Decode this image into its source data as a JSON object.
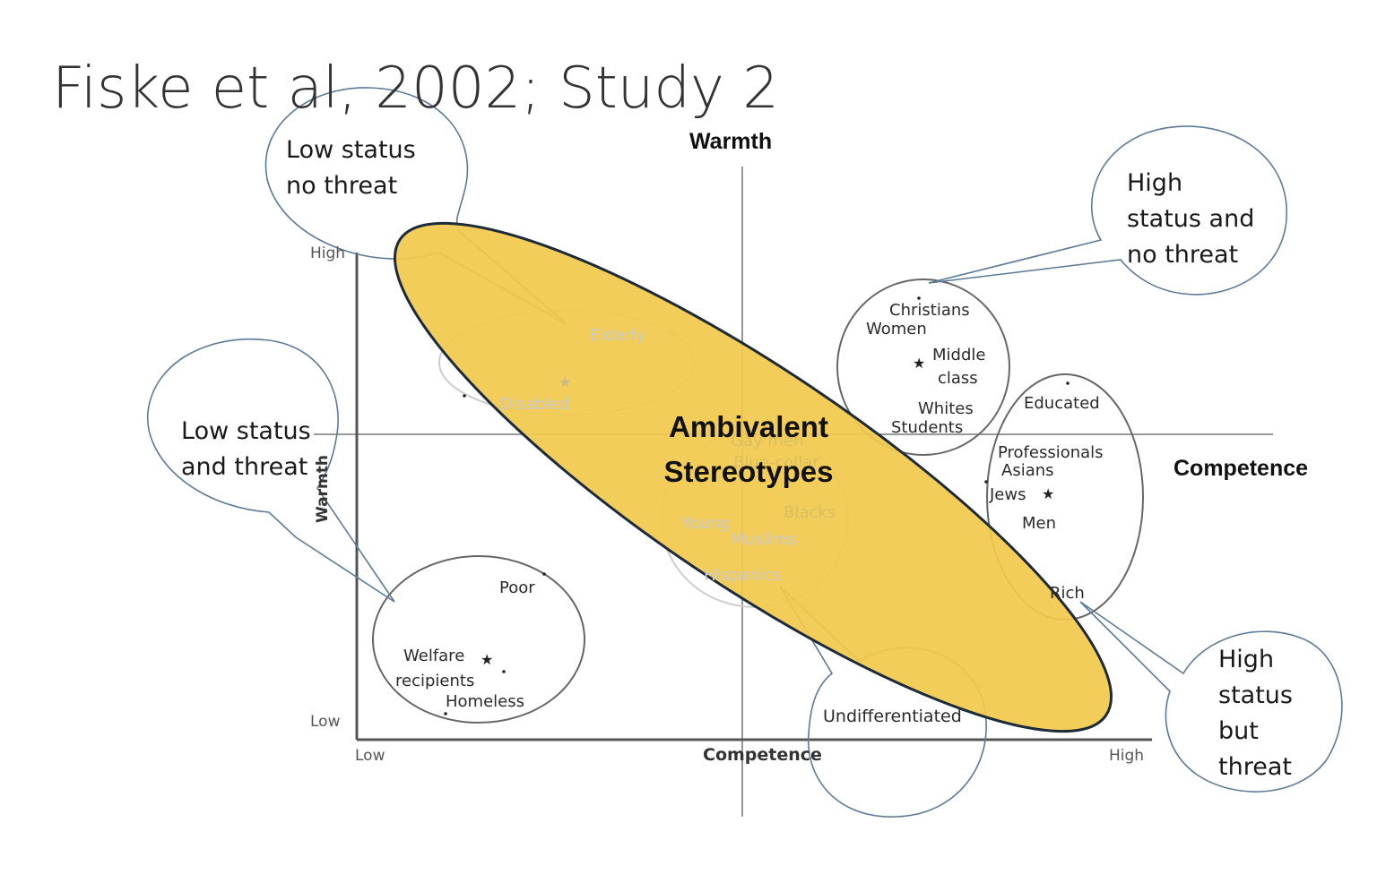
{
  "title": "Fiske et al, 2002; Study 2",
  "axes": {
    "top_warmth": "Warmth",
    "right_competence": "Competence",
    "inner_high": "High",
    "inner_low": "Low",
    "inner_warmth": "Warmth",
    "x_low": "Low",
    "x_competence": "Competence",
    "x_high": "High"
  },
  "callouts": {
    "low_status_no_threat": [
      "Low status",
      "no threat"
    ],
    "high_status_no_threat": [
      "High",
      "status and",
      "no threat"
    ],
    "low_status_and_threat": [
      "Low status",
      "and threat"
    ],
    "high_status_but_threat": [
      "High",
      "status",
      "but",
      "threat"
    ],
    "undifferentiated": "Undifferentiated"
  },
  "groups": {
    "elderly": "Elderly",
    "disabled": "Disabled",
    "christians": "Christians",
    "women": "Women",
    "middle": "Middle",
    "class": "class",
    "whites": "Whites",
    "students": "Students",
    "educated": "Educated",
    "professionals": "Professionals",
    "asians": "Asians",
    "jews": "Jews",
    "men": "Men",
    "rich": "Rich",
    "gay_men": "Gay men",
    "blue_collar": "Blue-collar",
    "young": "Young",
    "blacks": "Blacks",
    "muslims": "Muslims",
    "hispanics": "Hispanics",
    "poor": "Poor",
    "welfare": "Welfare",
    "recipients": "recipients",
    "homeless": "Homeless"
  },
  "overlay": {
    "line1": "Ambivalent",
    "line2": "Stereotypes",
    "fill_color": "#f2c94c",
    "stroke_color": "#1c2a3a"
  }
}
